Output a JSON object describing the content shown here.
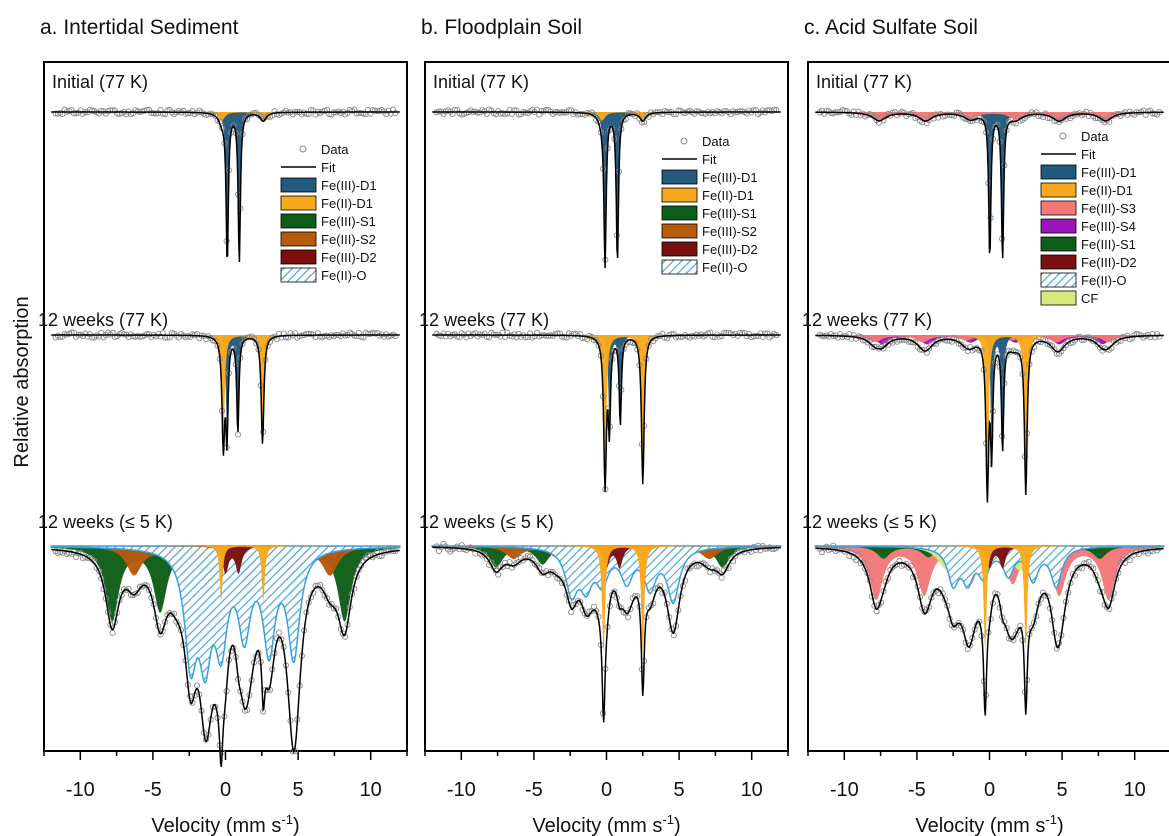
{
  "figure": {
    "ylabel": "Relative absorption",
    "xlabel_main": "Velocity (mm s",
    "xlabel_sup": "-1",
    "xlabel_end": ")"
  },
  "colors": {
    "Fe(III)-D1": "#225a7e",
    "Fe(II)-D1": "#f8a81c",
    "Fe(III)-S1": "#0d5e18",
    "Fe(III)-S2": "#b65a0c",
    "Fe(III)-D2": "#7a0f0f",
    "Fe(II)-O": "#3aa0dc",
    "Fe(III)-S3": "#f47878",
    "Fe(III)-S4": "#9a14b8",
    "CF": "#d6ea7c",
    "data": "#8a8a8a",
    "fit": "#000000"
  },
  "chart_data": [
    {
      "type": "line",
      "panel": "a",
      "title": "a. Intertidal Sediment",
      "xlabel": "Velocity (mm s-1)",
      "ylabel": "Relative absorption",
      "xlim": [
        -12.5,
        12.5
      ],
      "xticks": [
        "-10",
        "-5",
        "0",
        "5",
        "10"
      ],
      "tick_values": [
        -10,
        -5,
        0,
        5,
        10
      ],
      "legend": [
        "Data",
        "Fit",
        "Fe(III)-D1",
        "Fe(II)-D1",
        "Fe(III)-S1",
        "Fe(III)-S2",
        "Fe(III)-D2",
        "Fe(II)-O"
      ],
      "spectra": [
        {
          "label": "Initial (77 K)",
          "components": [
            {
              "name": "Fe(III)-D1",
              "lines": [
                [
                  0.12,
                  0.88
                ],
                [
                  0.95,
                  0.88
                ]
              ],
              "sep": 0.09
            },
            {
              "name": "Fe(II)-D1",
              "lines": [
                [
                  -0.25,
                  0.05
                ],
                [
                  2.6,
                  0.05
                ]
              ],
              "sep": 0.25
            }
          ]
        },
        {
          "label": "12 weeks (77 K)",
          "components": [
            {
              "name": "Fe(III)-D1",
              "lines": [
                [
                  0.1,
                  0.55
                ],
                [
                  0.85,
                  0.55
                ]
              ],
              "sep": 0.09
            },
            {
              "name": "Fe(II)-D1",
              "lines": [
                [
                  -0.15,
                  0.62
                ],
                [
                  2.55,
                  0.62
                ]
              ],
              "sep": 0.11
            }
          ]
        },
        {
          "label": "12 weeks (≤ 5 K)",
          "components": [
            {
              "name": "Fe(III)-S1",
              "lines": [
                [
                  -7.8,
                  0.42
                ],
                [
                  -4.5,
                  0.36
                ],
                [
                  -1.2,
                  0.25
                ],
                [
                  1.6,
                  0.25
                ],
                [
                  4.8,
                  0.36
                ],
                [
                  8.2,
                  0.42
                ]
              ],
              "sep": 0.55
            },
            {
              "name": "Fe(III)-S2",
              "lines": [
                [
                  -6.3,
                  0.16
                ],
                [
                  -3.4,
                  0.13
                ],
                [
                  -0.7,
                  0.1
                ],
                [
                  1.9,
                  0.1
                ],
                [
                  4.5,
                  0.13
                ],
                [
                  7.2,
                  0.16
                ]
              ],
              "sep": 0.65
            },
            {
              "name": "Fe(II)-O",
              "lines": [
                [
                  -2.4,
                  0.6
                ],
                [
                  -1.4,
                  0.55
                ],
                [
                  -0.3,
                  0.5
                ],
                [
                  1.3,
                  0.45
                ],
                [
                  3.0,
                  0.55
                ],
                [
                  4.7,
                  0.6
                ]
              ],
              "sep": 0.5
            },
            {
              "name": "Fe(III)-D2",
              "lines": [
                [
                  0.0,
                  0.15
                ],
                [
                  0.9,
                  0.15
                ]
              ],
              "sep": 0.25
            },
            {
              "name": "Fe(II)-D1",
              "lines": [
                [
                  -0.3,
                  0.32
                ],
                [
                  2.6,
                  0.32
                ]
              ],
              "sep": 0.12
            }
          ]
        }
      ]
    },
    {
      "type": "line",
      "panel": "b",
      "title": "b. Floodplain Soil",
      "xlabel": "Velocity (mm s-1)",
      "ylabel": "",
      "xlim": [
        -12.5,
        12.5
      ],
      "xticks": [
        "-10",
        "-5",
        "0",
        "5",
        "10"
      ],
      "tick_values": [
        -10,
        -5,
        0,
        5,
        10
      ],
      "legend": [
        "Data",
        "Fit",
        "Fe(III)-D1",
        "Fe(II)-D1",
        "Fe(III)-S1",
        "Fe(III)-S2",
        "Fe(III)-D2",
        "Fe(II)-O"
      ],
      "spectra": [
        {
          "label": "Initial (77 K)",
          "components": [
            {
              "name": "Fe(III)-D1",
              "lines": [
                [
                  -0.1,
                  0.88
                ],
                [
                  0.75,
                  0.88
                ]
              ],
              "sep": 0.09
            },
            {
              "name": "Fe(II)-D1",
              "lines": [
                [
                  -0.3,
                  0.05
                ],
                [
                  2.5,
                  0.05
                ]
              ],
              "sep": 0.25
            }
          ]
        },
        {
          "label": "12 weeks (77 K)",
          "components": [
            {
              "name": "Fe(III)-D1",
              "lines": [
                [
                  0.2,
                  0.5
                ],
                [
                  0.95,
                  0.5
                ]
              ],
              "sep": 0.09
            },
            {
              "name": "Fe(II)-D1",
              "lines": [
                [
                  -0.1,
                  0.85
                ],
                [
                  2.5,
                  0.85
                ]
              ],
              "sep": 0.11
            }
          ]
        },
        {
          "label": "12 weeks (≤ 5 K)",
          "components": [
            {
              "name": "Fe(III)-S1",
              "lines": [
                [
                  -7.6,
                  0.12
                ],
                [
                  -4.4,
                  0.1
                ],
                [
                  -1.1,
                  0.07
                ],
                [
                  1.5,
                  0.07
                ],
                [
                  4.7,
                  0.1
                ],
                [
                  8.0,
                  0.12
                ]
              ],
              "sep": 0.55
            },
            {
              "name": "Fe(III)-S2",
              "lines": [
                [
                  -6.4,
                  0.07
                ],
                [
                  -3.4,
                  0.06
                ],
                [
                  -0.7,
                  0.05
                ],
                [
                  1.9,
                  0.05
                ],
                [
                  4.4,
                  0.06
                ],
                [
                  7.1,
                  0.07
                ]
              ],
              "sep": 0.65
            },
            {
              "name": "Fe(II)-O",
              "lines": [
                [
                  -2.4,
                  0.25
                ],
                [
                  -1.4,
                  0.2
                ],
                [
                  -0.3,
                  0.18
                ],
                [
                  1.4,
                  0.18
                ],
                [
                  3.0,
                  0.22
                ],
                [
                  4.6,
                  0.3
                ]
              ],
              "sep": 0.5
            },
            {
              "name": "Fe(III)-D2",
              "lines": [
                [
                  0.0,
                  0.12
                ],
                [
                  0.9,
                  0.12
                ]
              ],
              "sep": 0.25
            },
            {
              "name": "Fe(II)-D1",
              "lines": [
                [
                  -0.2,
                  0.62
                ],
                [
                  2.5,
                  0.62
                ]
              ],
              "sep": 0.12
            }
          ]
        }
      ]
    },
    {
      "type": "line",
      "panel": "c",
      "title": "c. Acid Sulfate Soil",
      "xlabel": "Velocity (mm s-1)",
      "ylabel": "",
      "xlim": [
        -12.5,
        12.5
      ],
      "xticks": [
        "-10",
        "-5",
        "0",
        "5",
        "10"
      ],
      "tick_values": [
        -10,
        -5,
        0,
        5,
        10
      ],
      "legend": [
        "Data",
        "Fit",
        "Fe(III)-D1",
        "Fe(II)-D1",
        "Fe(III)-S3",
        "Fe(III)-S4",
        "Fe(III)-S1",
        "Fe(III)-D2",
        "Fe(II)-O",
        "CF"
      ],
      "spectra": [
        {
          "label": "Initial (77 K)",
          "components": [
            {
              "name": "Fe(III)-D1",
              "lines": [
                [
                  0.02,
                  0.85
                ],
                [
                  0.9,
                  0.85
                ]
              ],
              "sep": 0.09
            },
            {
              "name": "Fe(III)-S3",
              "lines": [
                [
                  -7.6,
                  0.05
                ],
                [
                  -4.4,
                  0.05
                ],
                [
                  -1.3,
                  0.04
                ],
                [
                  1.8,
                  0.04
                ],
                [
                  4.8,
                  0.05
                ],
                [
                  8.0,
                  0.05
                ]
              ],
              "sep": 0.55
            }
          ]
        },
        {
          "label": "12 weeks (77 K)",
          "components": [
            {
              "name": "Fe(III)-S4",
              "lines": [
                [
                  -7.4,
                  0.05
                ],
                [
                  -4.3,
                  0.05
                ],
                [
                  -1.3,
                  0.04
                ],
                [
                  1.8,
                  0.04
                ],
                [
                  4.8,
                  0.05
                ],
                [
                  7.8,
                  0.05
                ]
              ],
              "sep": 0.55
            },
            {
              "name": "Fe(III)-S3",
              "lines": [
                [
                  -7.9,
                  0.04
                ],
                [
                  -4.6,
                  0.04
                ],
                [
                  -1.6,
                  0.03
                ],
                [
                  1.5,
                  0.03
                ],
                [
                  4.6,
                  0.04
                ],
                [
                  8.2,
                  0.04
                ]
              ],
              "sep": 0.55
            },
            {
              "name": "Fe(III)-D1",
              "lines": [
                [
                  0.15,
                  0.62
                ],
                [
                  0.9,
                  0.62
                ]
              ],
              "sep": 0.09
            },
            {
              "name": "Fe(II)-D1",
              "lines": [
                [
                  -0.15,
                  0.88
                ],
                [
                  2.5,
                  0.88
                ]
              ],
              "sep": 0.11
            }
          ]
        },
        {
          "label": "12 weeks (≤ 5 K)",
          "components": [
            {
              "name": "Fe(III)-S3",
              "lines": [
                [
                  -7.8,
                  0.3
                ],
                [
                  -4.5,
                  0.27
                ],
                [
                  -1.3,
                  0.2
                ],
                [
                  1.6,
                  0.2
                ],
                [
                  4.8,
                  0.27
                ],
                [
                  8.2,
                  0.3
                ]
              ],
              "sep": 0.55
            },
            {
              "name": "Fe(III)-S1",
              "lines": [
                [
                  -7.3,
                  0.07
                ],
                [
                  -4.2,
                  0.06
                ],
                [
                  -1.0,
                  0.05
                ],
                [
                  1.9,
                  0.05
                ],
                [
                  5.0,
                  0.06
                ],
                [
                  7.6,
                  0.07
                ]
              ],
              "sep": 0.55
            },
            {
              "name": "CF",
              "lines": [
                [
                  -3.0,
                  0.1
                ],
                [
                  -2.0,
                  0.1
                ],
                [
                  2.0,
                  0.1
                ],
                [
                  3.0,
                  0.1
                ]
              ],
              "sep": 0.7
            },
            {
              "name": "Fe(II)-O",
              "lines": [
                [
                  -2.5,
                  0.2
                ],
                [
                  -1.5,
                  0.18
                ],
                [
                  -0.4,
                  0.15
                ],
                [
                  1.3,
                  0.15
                ],
                [
                  3.0,
                  0.18
                ],
                [
                  4.6,
                  0.22
                ]
              ],
              "sep": 0.45
            },
            {
              "name": "Fe(III)-D2",
              "lines": [
                [
                  0.0,
                  0.12
                ],
                [
                  0.9,
                  0.12
                ]
              ],
              "sep": 0.25
            },
            {
              "name": "Fe(II)-D1",
              "lines": [
                [
                  -0.3,
                  0.6
                ],
                [
                  2.5,
                  0.6
                ]
              ],
              "sep": 0.12
            }
          ]
        }
      ]
    }
  ]
}
